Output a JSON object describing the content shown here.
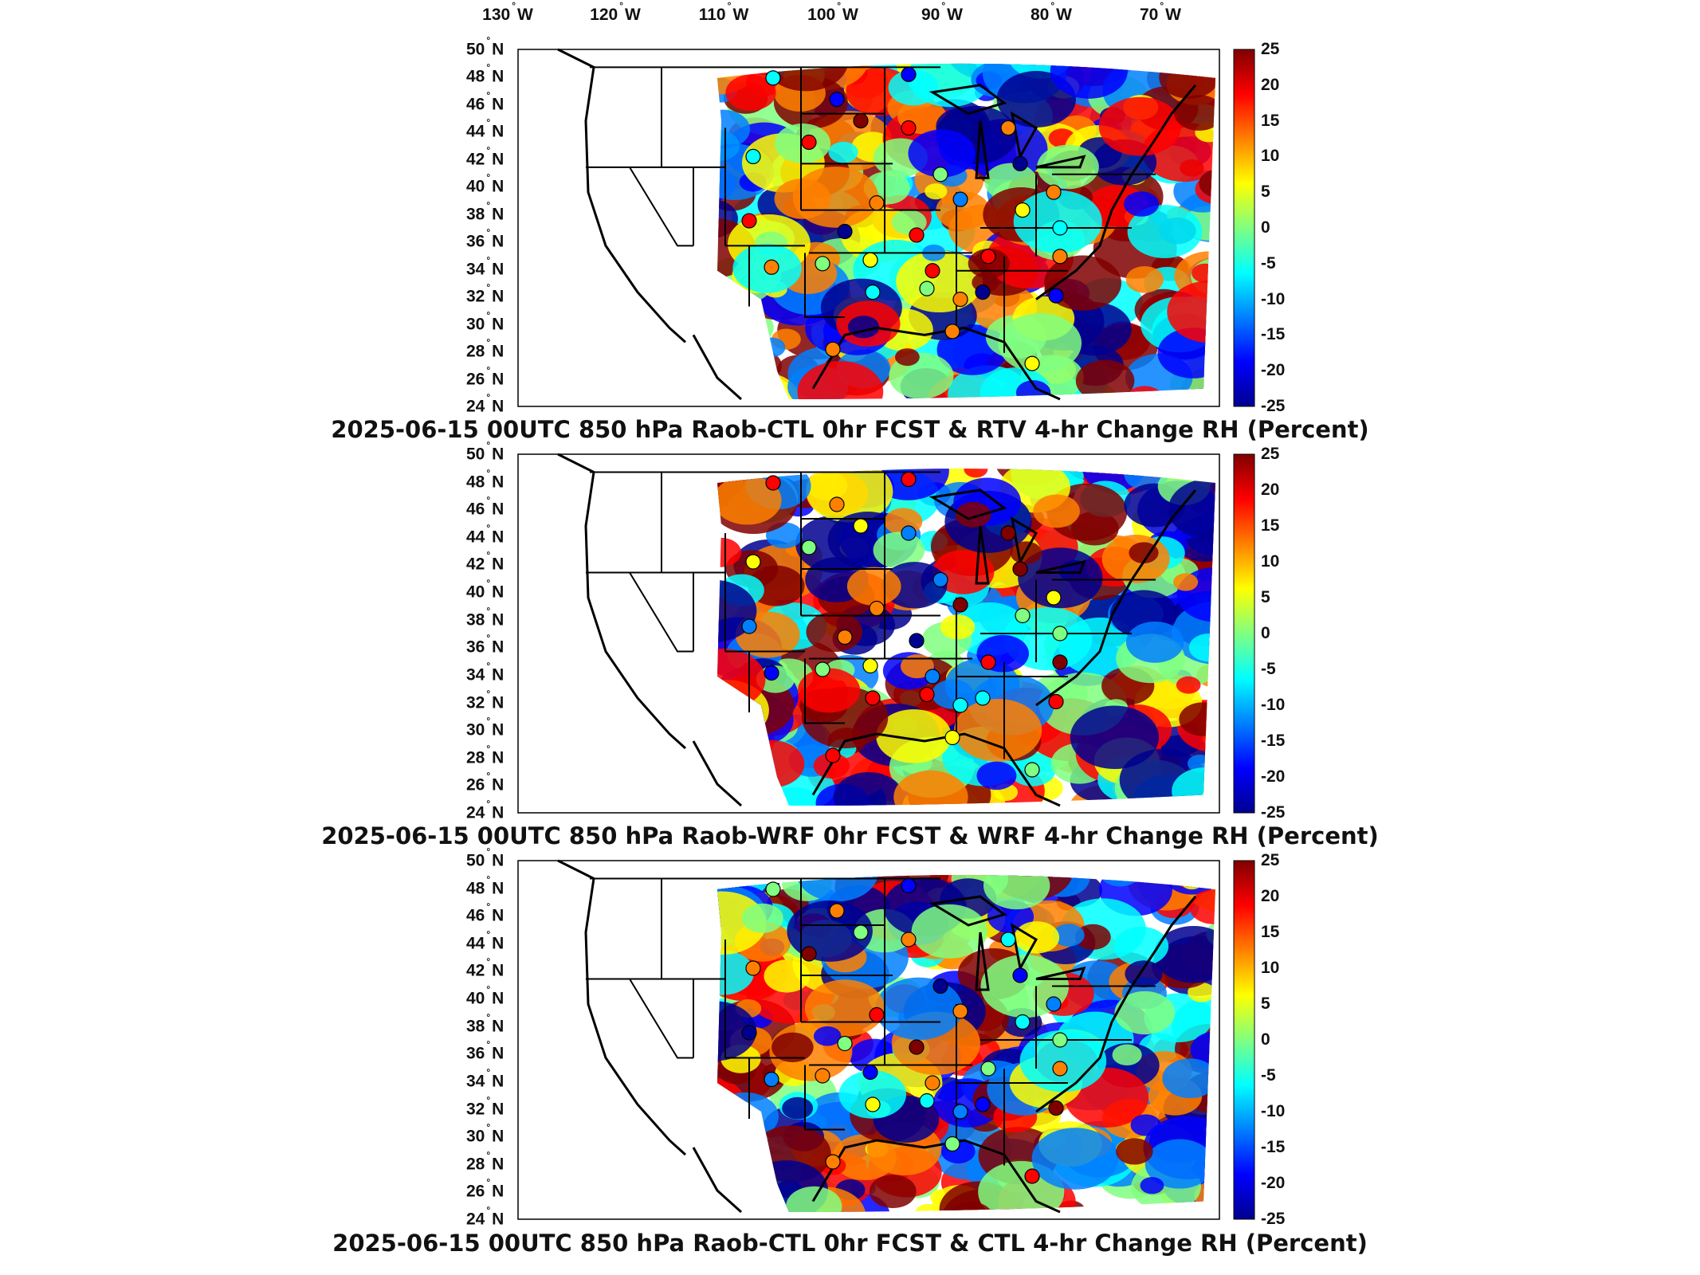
{
  "longitude_labels": [
    "130",
    "120",
    "110",
    "100",
    "90",
    "80",
    "70"
  ],
  "lon_suffix": "W",
  "latitude_labels": [
    "50",
    "48",
    "46",
    "44",
    "42",
    "40",
    "38",
    "36",
    "34",
    "32",
    "30",
    "28",
    "26",
    "24"
  ],
  "lat_suffix": "N",
  "degree_symbol": "°",
  "colorbar_ticks": [
    "25",
    "20",
    "15",
    "10",
    "5",
    "0",
    "-5",
    "-10",
    "-15",
    "-20",
    "-25"
  ],
  "colormap": [
    "#00008f",
    "#0000ff",
    "#0080ff",
    "#00ffff",
    "#80ff80",
    "#ffff00",
    "#ff8000",
    "#ff0000",
    "#800000"
  ],
  "colorbar_range": [
    -25,
    25
  ],
  "panels": [
    {
      "title": "2025-06-15 00UTC 850 hPa Raob-CTL 0hr FCST & RTV 4-hr Change RH (Percent)"
    },
    {
      "title": "2025-06-15 00UTC 850 hPa Raob-WRF 0hr FCST & WRF 4-hr Change RH (Percent)"
    },
    {
      "title": "2025-06-15 00UTC 850 hPa Raob-CTL 0hr FCST & CTL 4-hr Change RH (Percent)"
    }
  ]
}
